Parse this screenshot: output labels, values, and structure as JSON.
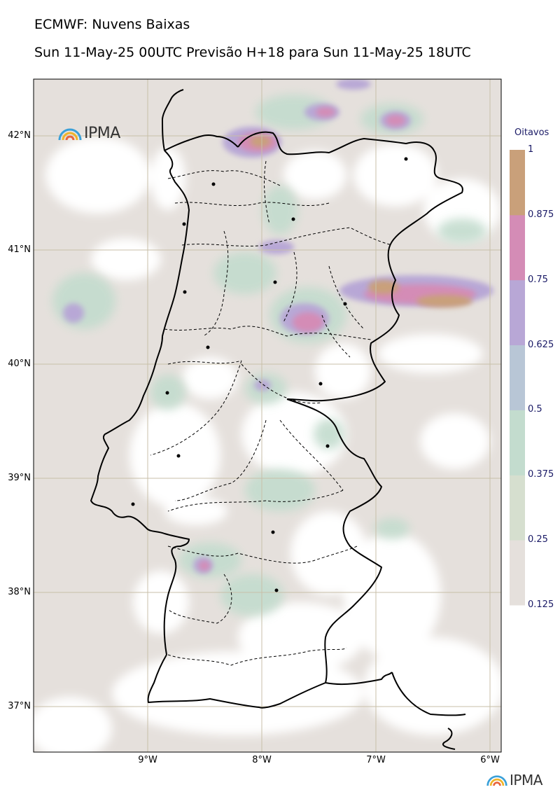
{
  "title": "ECMWF: Nuvens Baixas",
  "subtitle": "Sun 11-May-25 00UTC Previsão H+18 para Sun 11-May-25 18UTC",
  "logo_text": "IPMA",
  "colorbar": {
    "unit": "Oitavos",
    "ticks": [
      "0.125",
      "0.25",
      "0.375",
      "0.5",
      "0.625",
      "0.75",
      "0.875",
      "1"
    ],
    "colors": [
      "#e5e0dc",
      "#d6dfcf",
      "#c3dcce",
      "#b8c6d6",
      "#b8a7d6",
      "#d48cb6",
      "#c9a07a"
    ]
  },
  "latitude_labels": [
    "42°N",
    "41°N",
    "40°N",
    "39°N",
    "38°N",
    "37°N"
  ],
  "longitude_labels": [
    "9°W",
    "8°W",
    "7°W",
    "6°W"
  ],
  "map": {
    "land_color": "#ffffff",
    "grid_color": "#c8bfa8",
    "coast_color": "#000000"
  }
}
